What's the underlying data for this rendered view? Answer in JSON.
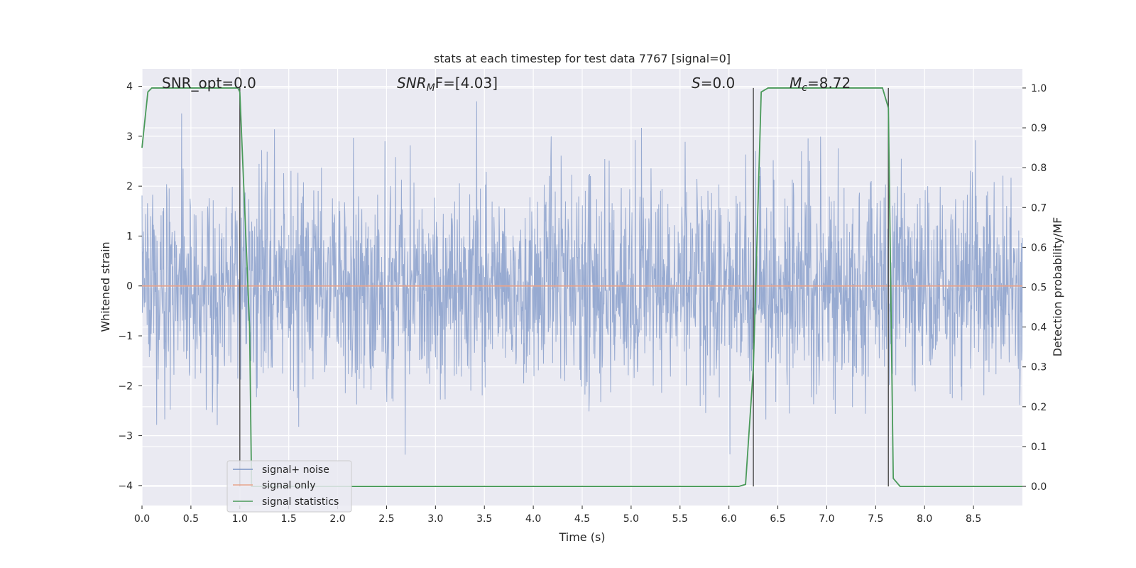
{
  "chart_data": {
    "type": "line",
    "title": "stats at each timestep for test data 7767 [signal=0]",
    "xlabel": "Time (s)",
    "ylabel": "Whitened strain",
    "y2label": "Detection probability/MF",
    "xlim": [
      0,
      9.0
    ],
    "ylim": [
      -4.4,
      4.35
    ],
    "y2lim": [
      -0.048,
      1.048
    ],
    "x_ticks": [
      0.0,
      0.5,
      1.0,
      1.5,
      2.0,
      2.5,
      3.0,
      3.5,
      4.0,
      4.5,
      5.0,
      5.5,
      6.0,
      6.5,
      7.0,
      7.5,
      8.0,
      8.5
    ],
    "x_tick_labels": [
      "0.0",
      "0.5",
      "1.0",
      "1.5",
      "2.0",
      "2.5",
      "3.0",
      "3.5",
      "4.0",
      "4.5",
      "5.0",
      "5.5",
      "6.0",
      "6.5",
      "7.0",
      "7.5",
      "8.0",
      "8.5"
    ],
    "y_ticks": [
      4,
      3,
      2,
      1,
      0,
      -1,
      -2,
      -3,
      -4
    ],
    "y_tick_labels": [
      "4",
      "3",
      "2",
      "1",
      "0",
      "−1",
      "−2",
      "−3",
      "−4"
    ],
    "y2_ticks": [
      1.0,
      0.9,
      0.8,
      0.7,
      0.6,
      0.5,
      0.4,
      0.3,
      0.2,
      0.1,
      0.0
    ],
    "y2_tick_labels": [
      "1.0",
      "0.9",
      "0.8",
      "0.7",
      "0.6",
      "0.5",
      "0.4",
      "0.3",
      "0.2",
      "0.1",
      "0.0"
    ],
    "grid": true,
    "legend_position": "lower-left",
    "series": [
      {
        "name": "signal+ noise",
        "axis": "left",
        "color": "#7b94c6",
        "description_values": "whitened noise, approx. range -3.9 to 3.7"
      },
      {
        "name": "signal only",
        "axis": "left",
        "color": "#e8a48c",
        "x": [
          0.0,
          9.0
        ],
        "values": [
          0.0,
          0.0
        ]
      },
      {
        "name": "signal statistics",
        "axis": "right",
        "color": "#4a9a5a",
        "x": [
          0.0,
          0.06,
          0.1,
          0.2,
          0.5,
          0.8,
          0.98,
          1.0,
          1.1,
          1.12,
          1.2,
          1.5,
          2.0,
          3.0,
          4.0,
          5.0,
          5.5,
          6.0,
          6.1,
          6.17,
          6.25,
          6.33,
          6.4,
          6.5,
          7.0,
          7.5,
          7.57,
          7.63,
          7.68,
          7.75,
          8.0,
          8.5,
          9.0
        ],
        "values": [
          0.85,
          0.99,
          1.0,
          1.0,
          1.0,
          1.0,
          1.0,
          0.99,
          0.4,
          0.0,
          0.0,
          0.0,
          0.0,
          0.0,
          0.0,
          0.0,
          0.0,
          0.0,
          0.0,
          0.005,
          0.3,
          0.99,
          1.0,
          1.0,
          1.0,
          1.0,
          1.0,
          0.95,
          0.02,
          0.0,
          0.0,
          0.0,
          0.0
        ]
      }
    ],
    "vlines": {
      "color": "#555555",
      "x": [
        1.0,
        6.25,
        7.63
      ],
      "y2_ranges": [
        [
          0.0,
          1.0
        ],
        [
          0.0,
          1.0
        ],
        [
          0.0,
          1.0
        ]
      ]
    },
    "annotations": [
      {
        "id": "snr-opt",
        "text": "SNR_opt=0.0"
      },
      {
        "id": "snr-mf",
        "text_prefix": "SNR",
        "text_sub": "M",
        "text_suffix": "F=[4.03]"
      },
      {
        "id": "s-stat",
        "text_prefix": "S",
        "text_suffix": "=0.0"
      },
      {
        "id": "mc",
        "text_prefix": "M",
        "text_sub": "c",
        "text_suffix": "=8.72"
      }
    ],
    "legend": [
      {
        "label": "signal+ noise",
        "color": "#7b94c6"
      },
      {
        "label": "signal only",
        "color": "#e8a48c"
      },
      {
        "label": "signal statistics",
        "color": "#4a9a5a"
      }
    ]
  }
}
